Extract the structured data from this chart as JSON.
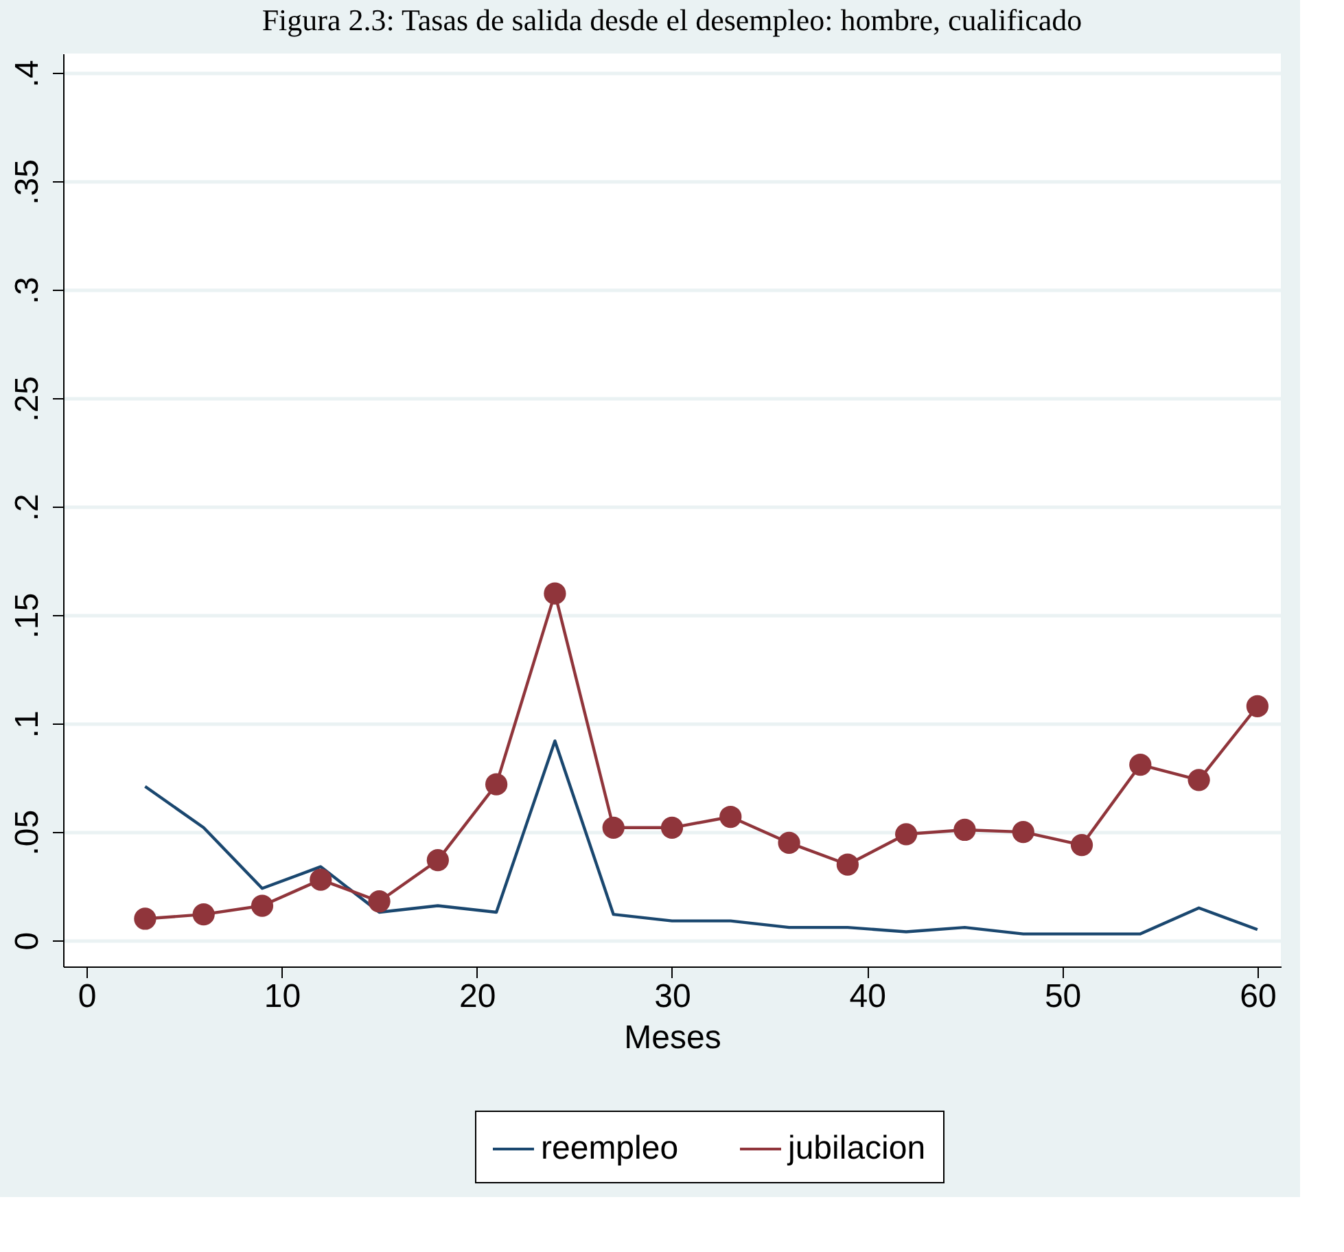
{
  "chart_data": {
    "type": "line",
    "title": "Figura 2.3: Tasas de salida desde el desempleo: hombre, cualificado",
    "xlabel": "Meses",
    "x": [
      3,
      6,
      9,
      12,
      15,
      18,
      21,
      24,
      27,
      30,
      33,
      36,
      39,
      42,
      45,
      48,
      51,
      54,
      57,
      60
    ],
    "series": [
      {
        "name": "reempleo",
        "color": "#1a476f",
        "marker": "none",
        "values": [
          0.071,
          0.052,
          0.024,
          0.034,
          0.013,
          0.016,
          0.013,
          0.092,
          0.012,
          0.009,
          0.009,
          0.006,
          0.006,
          0.004,
          0.006,
          0.003,
          0.003,
          0.003,
          0.015,
          0.005
        ]
      },
      {
        "name": "jubilacion",
        "color": "#90353b",
        "marker": "circle",
        "values": [
          0.01,
          0.012,
          0.016,
          0.028,
          0.018,
          0.037,
          0.072,
          0.16,
          0.052,
          0.052,
          0.057,
          0.045,
          0.035,
          0.049,
          0.051,
          0.05,
          0.044,
          0.081,
          0.074,
          0.108
        ]
      }
    ],
    "xlim": [
      -1.2,
      61.2
    ],
    "xticks": [
      0,
      10,
      20,
      30,
      40,
      50,
      60
    ],
    "ylim": [
      -0.012,
      0.409
    ],
    "yticks": [
      0,
      {
        "value": 0.05,
        "label": ".05"
      },
      {
        "value": 0.1,
        "label": ".1"
      },
      {
        "value": 0.15,
        "label": ".15"
      },
      {
        "value": 0.2,
        "label": ".2"
      },
      {
        "value": 0.25,
        "label": ".25"
      },
      {
        "value": 0.3,
        "label": ".3"
      },
      {
        "value": 0.35,
        "label": ".35"
      },
      {
        "value": 0.4,
        "label": ".4"
      }
    ],
    "grid": "y",
    "legend": "bottom",
    "line_style": "solid"
  }
}
